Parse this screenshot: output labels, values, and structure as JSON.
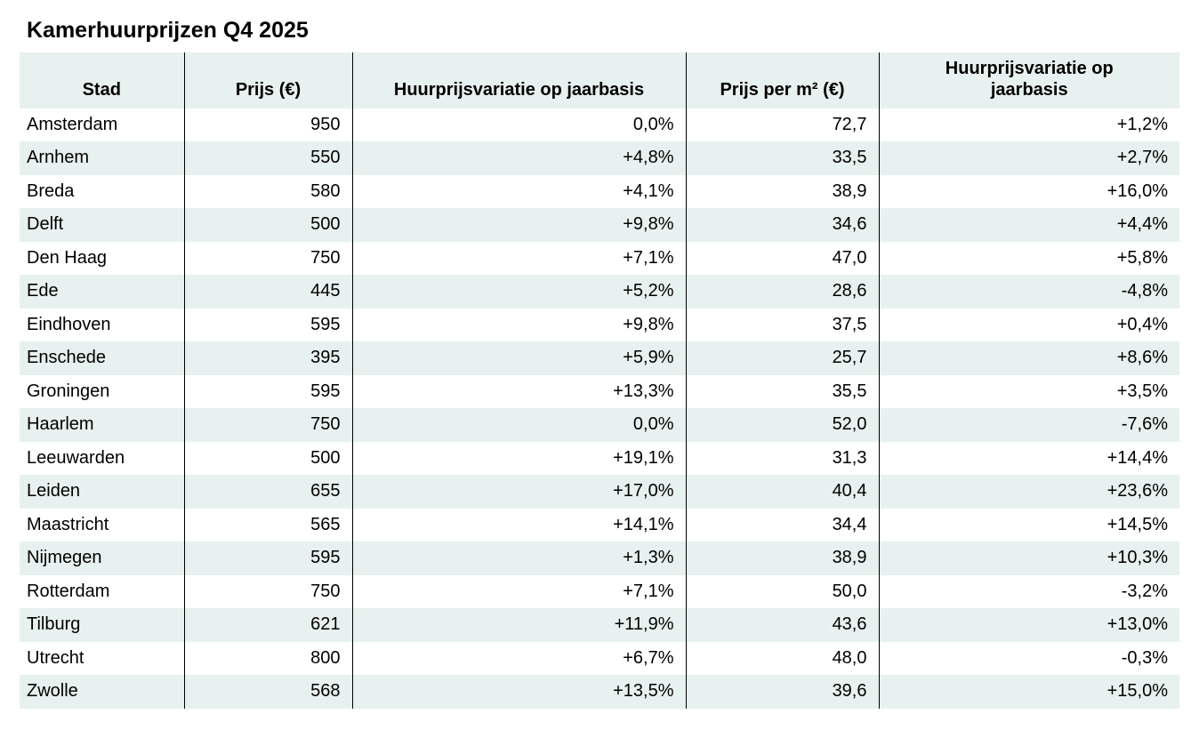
{
  "title": "Kamerhuurprijzen Q4 2025",
  "colors": {
    "stripe": "#e7f1ef",
    "border": "#000000",
    "text": "#000000",
    "background": "#ffffff"
  },
  "chart_data": {
    "type": "table",
    "title": "Kamerhuurprijzen Q4 2025",
    "columns": [
      "Stad",
      "Prijs (€)",
      "Huurprijsvariatie op jaarbasis",
      "Prijs per m² (€)",
      "Huurprijsvariatie op jaarbasis"
    ],
    "column_alignments": [
      "left",
      "right",
      "right",
      "right",
      "right"
    ],
    "rows": [
      [
        "Amsterdam",
        "950",
        "0,0%",
        "72,7",
        "+1,2%"
      ],
      [
        "Arnhem",
        "550",
        "+4,8%",
        "33,5",
        "+2,7%"
      ],
      [
        "Breda",
        "580",
        "+4,1%",
        "38,9",
        "+16,0%"
      ],
      [
        "Delft",
        "500",
        "+9,8%",
        "34,6",
        "+4,4%"
      ],
      [
        "Den Haag",
        "750",
        "+7,1%",
        "47,0",
        "+5,8%"
      ],
      [
        "Ede",
        "445",
        "+5,2%",
        "28,6",
        "-4,8%"
      ],
      [
        "Eindhoven",
        "595",
        "+9,8%",
        "37,5",
        "+0,4%"
      ],
      [
        "Enschede",
        "395",
        "+5,9%",
        "25,7",
        "+8,6%"
      ],
      [
        "Groningen",
        "595",
        "+13,3%",
        "35,5",
        "+3,5%"
      ],
      [
        "Haarlem",
        "750",
        "0,0%",
        "52,0",
        "-7,6%"
      ],
      [
        "Leeuwarden",
        "500",
        "+19,1%",
        "31,3",
        "+14,4%"
      ],
      [
        "Leiden",
        "655",
        "+17,0%",
        "40,4",
        "+23,6%"
      ],
      [
        "Maastricht",
        "565",
        "+14,1%",
        "34,4",
        "+14,5%"
      ],
      [
        "Nijmegen",
        "595",
        "+1,3%",
        "38,9",
        "+10,3%"
      ],
      [
        "Rotterdam",
        "750",
        "+7,1%",
        "50,0",
        "-3,2%"
      ],
      [
        "Tilburg",
        "621",
        "+11,9%",
        "43,6",
        "+13,0%"
      ],
      [
        "Utrecht",
        "800",
        "+6,7%",
        "48,0",
        "-0,3%"
      ],
      [
        "Zwolle",
        "568",
        "+13,5%",
        "39,6",
        "+15,0%"
      ]
    ]
  }
}
